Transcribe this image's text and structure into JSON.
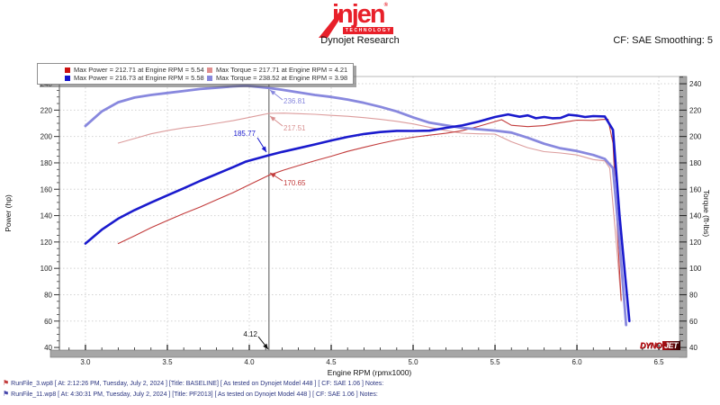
{
  "header": {
    "logo_word": "injen",
    "logo_registered": "®",
    "logo_sub": "TECHNOLOGY",
    "title": "Dynojet Research",
    "smoothing": "CF: SAE Smoothing: 5",
    "brand_red": "#e8202a"
  },
  "chart_data": {
    "type": "line",
    "xlabel": "Engine RPM (rpmx1000)",
    "ylabel_left": "Power (hp)",
    "ylabel_right": "Torque (ft-lbs)",
    "x_range": [
      2.841,
      6.626
    ],
    "y_range": [
      38,
      245.5
    ],
    "x_tick_labels": [
      "3.0",
      "3.5",
      "4.0",
      "4.5",
      "5.0",
      "5.5",
      "6.0",
      "6.5"
    ],
    "x_tick_values": [
      3.0,
      3.5,
      4.0,
      4.5,
      5.0,
      5.5,
      6.0,
      6.5
    ],
    "y_tick_values": [
      40,
      60,
      80,
      100,
      120,
      140,
      160,
      180,
      200,
      220,
      240
    ],
    "y_grid_values": [
      60,
      80,
      100,
      120,
      140,
      160,
      180,
      200,
      220,
      240
    ],
    "x_minor_step": 0.1,
    "y_minor_step": 5,
    "grid": true,
    "legend": {
      "position": "top-left",
      "items": [
        {
          "color": "#cc1111",
          "text": "Max Power = 212.71 at Engine RPM = 5.54"
        },
        {
          "color": "#e08f8f",
          "text": "Max Torque = 217.71 at Engine RPM = 4.21"
        },
        {
          "color": "#1515cc",
          "text": "Max Power = 216.73 at Engine RPM = 5.58"
        },
        {
          "color": "#8888dd",
          "text": "Max Torque = 238.52 at Engine RPM = 3.98"
        }
      ]
    },
    "series": [
      {
        "name": "baseline-torque",
        "axis": "torque",
        "color": "#dc9c9c",
        "width": 1.1,
        "points": [
          [
            3.2,
            195
          ],
          [
            3.3,
            198.5
          ],
          [
            3.4,
            202
          ],
          [
            3.5,
            204.5
          ],
          [
            3.6,
            206.5
          ],
          [
            3.7,
            208
          ],
          [
            3.8,
            210
          ],
          [
            3.9,
            212
          ],
          [
            4.0,
            214.5
          ],
          [
            4.12,
            217.51
          ],
          [
            4.21,
            217.71
          ],
          [
            4.3,
            217.3
          ],
          [
            4.4,
            216.8
          ],
          [
            4.5,
            216
          ],
          [
            4.6,
            215.3
          ],
          [
            4.7,
            214.3
          ],
          [
            4.8,
            213
          ],
          [
            4.9,
            211.5
          ],
          [
            5.0,
            209.5
          ],
          [
            5.1,
            207
          ],
          [
            5.2,
            204.5
          ],
          [
            5.3,
            202.5
          ],
          [
            5.4,
            202
          ],
          [
            5.5,
            201.8
          ],
          [
            5.6,
            196
          ],
          [
            5.7,
            191.5
          ],
          [
            5.8,
            188.5
          ],
          [
            5.9,
            187.5
          ],
          [
            6.0,
            186
          ],
          [
            6.1,
            182.5
          ],
          [
            6.17,
            181.5
          ],
          [
            6.2,
            176
          ],
          [
            6.24,
            120
          ],
          [
            6.27,
            75
          ]
        ]
      },
      {
        "name": "baseline-power",
        "axis": "power",
        "color": "#c23b3b",
        "width": 1.1,
        "points": [
          [
            3.2,
            118.8
          ],
          [
            3.3,
            124.7
          ],
          [
            3.4,
            130.8
          ],
          [
            3.5,
            136.3
          ],
          [
            3.6,
            141.6
          ],
          [
            3.7,
            146.5
          ],
          [
            3.8,
            152
          ],
          [
            3.9,
            157.4
          ],
          [
            4.0,
            163.4
          ],
          [
            4.12,
            170.65
          ],
          [
            4.21,
            174.5
          ],
          [
            4.3,
            177.9
          ],
          [
            4.4,
            181.6
          ],
          [
            4.5,
            185
          ],
          [
            4.6,
            188.7
          ],
          [
            4.7,
            191.8
          ],
          [
            4.8,
            194.7
          ],
          [
            4.9,
            197.4
          ],
          [
            5.0,
            199.4
          ],
          [
            5.1,
            201
          ],
          [
            5.2,
            202.4
          ],
          [
            5.3,
            204.4
          ],
          [
            5.4,
            207.7
          ],
          [
            5.5,
            211.3
          ],
          [
            5.54,
            212.71
          ],
          [
            5.6,
            208.5
          ],
          [
            5.7,
            207.5
          ],
          [
            5.8,
            208.2
          ],
          [
            5.9,
            210.5
          ],
          [
            6.0,
            212.4
          ],
          [
            6.1,
            212.2
          ],
          [
            6.15,
            212.9
          ],
          [
            6.19,
            213
          ],
          [
            6.22,
            195
          ],
          [
            6.25,
            120
          ],
          [
            6.27,
            76
          ]
        ]
      },
      {
        "name": "pf2013-torque",
        "axis": "torque",
        "color": "#8888de",
        "width": 2.8,
        "points": [
          [
            3.0,
            208
          ],
          [
            3.1,
            219
          ],
          [
            3.2,
            226
          ],
          [
            3.3,
            229.5
          ],
          [
            3.4,
            231.5
          ],
          [
            3.5,
            233
          ],
          [
            3.6,
            234.5
          ],
          [
            3.7,
            236
          ],
          [
            3.8,
            237
          ],
          [
            3.9,
            238
          ],
          [
            3.98,
            238.52
          ],
          [
            4.12,
            236.81
          ],
          [
            4.2,
            235.5
          ],
          [
            4.3,
            233.5
          ],
          [
            4.4,
            231.5
          ],
          [
            4.5,
            230
          ],
          [
            4.6,
            228
          ],
          [
            4.7,
            225.5
          ],
          [
            4.8,
            222.5
          ],
          [
            4.9,
            219
          ],
          [
            5.0,
            214.5
          ],
          [
            5.1,
            210.5
          ],
          [
            5.2,
            208.5
          ],
          [
            5.3,
            206.5
          ],
          [
            5.4,
            205.5
          ],
          [
            5.5,
            204.5
          ],
          [
            5.6,
            203
          ],
          [
            5.7,
            199
          ],
          [
            5.8,
            194.5
          ],
          [
            5.9,
            191
          ],
          [
            6.0,
            189
          ],
          [
            6.1,
            186
          ],
          [
            6.17,
            183
          ],
          [
            6.22,
            176
          ],
          [
            6.26,
            120
          ],
          [
            6.3,
            57
          ]
        ]
      },
      {
        "name": "pf2013-power",
        "axis": "power",
        "color": "#1a1acd",
        "width": 2.6,
        "points": [
          [
            3.0,
            118.8
          ],
          [
            3.1,
            129.3
          ],
          [
            3.2,
            137.7
          ],
          [
            3.3,
            144.2
          ],
          [
            3.4,
            149.9
          ],
          [
            3.5,
            155.3
          ],
          [
            3.6,
            160.7
          ],
          [
            3.7,
            166.3
          ],
          [
            3.8,
            171.5
          ],
          [
            3.9,
            176.7
          ],
          [
            3.98,
            181
          ],
          [
            4.12,
            185.77
          ],
          [
            4.2,
            188.3
          ],
          [
            4.3,
            191.1
          ],
          [
            4.4,
            194
          ],
          [
            4.5,
            197
          ],
          [
            4.6,
            199.7
          ],
          [
            4.7,
            201.9
          ],
          [
            4.8,
            203.4
          ],
          [
            4.9,
            204.3
          ],
          [
            5.0,
            204.2
          ],
          [
            5.1,
            204.4
          ],
          [
            5.2,
            206.5
          ],
          [
            5.3,
            208.4
          ],
          [
            5.4,
            211.3
          ],
          [
            5.5,
            214.8
          ],
          [
            5.58,
            216.73
          ],
          [
            5.65,
            215
          ],
          [
            5.7,
            216
          ],
          [
            5.75,
            213.8
          ],
          [
            5.8,
            214.8
          ],
          [
            5.85,
            213.8
          ],
          [
            5.9,
            214
          ],
          [
            5.95,
            216.5
          ],
          [
            6.0,
            215.9
          ],
          [
            6.05,
            214.8
          ],
          [
            6.1,
            215.5
          ],
          [
            6.17,
            215.2
          ],
          [
            6.22,
            205
          ],
          [
            6.26,
            140
          ],
          [
            6.32,
            60
          ]
        ]
      }
    ],
    "cursor": {
      "x": 4.12,
      "label": "4.12",
      "arrow": [
        287,
        374,
        298,
        388
      ]
    },
    "annotations": [
      {
        "text": "236.81",
        "color": "#8888de",
        "arrow": [
          314,
          111,
          300,
          100
        ]
      },
      {
        "text": "217.51",
        "color": "#d89090",
        "arrow": [
          314,
          140,
          300,
          129
        ]
      },
      {
        "text": "185.77",
        "color": "#1a1acd",
        "arrow": [
          286,
          153,
          296,
          169
        ]
      },
      {
        "text": "170.65",
        "color": "#c23b3b",
        "arrow": [
          314,
          201,
          300,
          192
        ]
      }
    ]
  },
  "watermark": {
    "dyno": "DYNO",
    "jet": "JET"
  },
  "footer": {
    "lines": [
      {
        "icon_color": "#c23b3b",
        "text": "RunFile_3.wp8 [ At: 2:12:26 PM, Tuesday, July 2, 2024 ] [Title: BASELINE]  [ As tested on Dynojet Model 448 ] [ CF: SAE 1.06 ] Notes:"
      },
      {
        "icon_color": "#4646aa",
        "text": "RunFile_11.wp8 [ At: 4:30:31 PM, Tuesday, July 2, 2024 ] [Title: PF2013]  [ As tested on Dynojet Model 448 ] [ CF: SAE 1.06 ] Notes:"
      }
    ]
  }
}
